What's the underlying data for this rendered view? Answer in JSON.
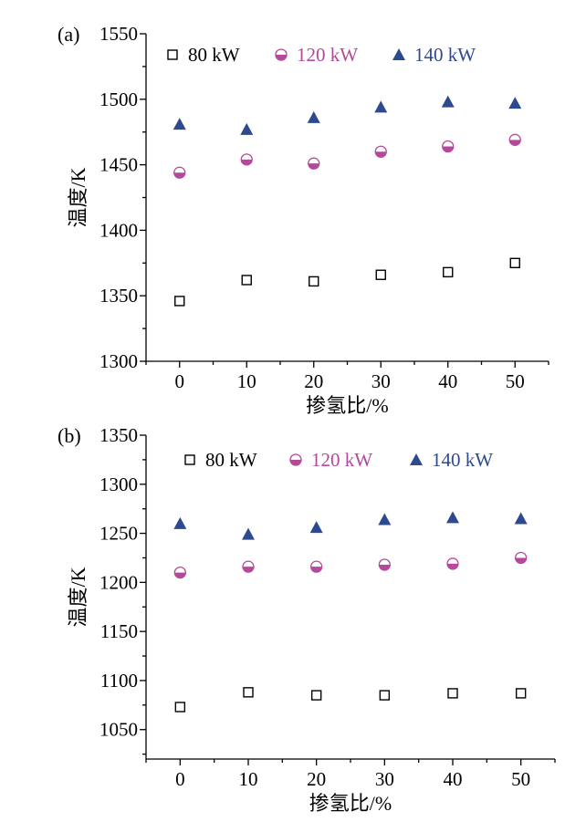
{
  "colors": {
    "s80": "#000000",
    "s120": "#b5489a",
    "s140": "#2e4a8f"
  },
  "chart_data": [
    {
      "type": "scatter",
      "panel_label": "(a)",
      "xlabel": "掺氢比/%",
      "ylabel": "温度/K",
      "xlim": [
        -5,
        55
      ],
      "ylim": [
        1300,
        1550
      ],
      "xticks": [
        0,
        10,
        20,
        30,
        40,
        50
      ],
      "yticks": [
        1300,
        1350,
        1400,
        1450,
        1500,
        1550
      ],
      "legend_position": "top",
      "x": [
        0,
        10,
        20,
        30,
        40,
        50
      ],
      "series": [
        {
          "name": "80 kW",
          "marker": "square-open",
          "values": [
            1346,
            1362,
            1361,
            1366,
            1368,
            1375
          ]
        },
        {
          "name": "120 kW",
          "marker": "circle-half",
          "values": [
            1444,
            1454,
            1451,
            1460,
            1464,
            1469
          ]
        },
        {
          "name": "140 kW",
          "marker": "triangle",
          "values": [
            1481,
            1477,
            1486,
            1494,
            1498,
            1497
          ]
        }
      ]
    },
    {
      "type": "scatter",
      "panel_label": "(b)",
      "xlabel": "掺氢比/%",
      "ylabel": "温度/K",
      "xlim": [
        -5,
        55
      ],
      "ylim": [
        1020,
        1350
      ],
      "xticks": [
        0,
        10,
        20,
        30,
        40,
        50
      ],
      "yticks": [
        1050,
        1100,
        1150,
        1200,
        1250,
        1300,
        1350
      ],
      "legend_position": "top",
      "x": [
        0,
        10,
        20,
        30,
        40,
        50
      ],
      "series": [
        {
          "name": "80 kW",
          "marker": "square-open",
          "values": [
            1073,
            1088,
            1085,
            1085,
            1087,
            1087
          ]
        },
        {
          "name": "120 kW",
          "marker": "circle-half",
          "values": [
            1210,
            1216,
            1216,
            1218,
            1219,
            1225
          ]
        },
        {
          "name": "140 kW",
          "marker": "triangle",
          "values": [
            1260,
            1249,
            1256,
            1264,
            1266,
            1265
          ]
        }
      ]
    }
  ]
}
